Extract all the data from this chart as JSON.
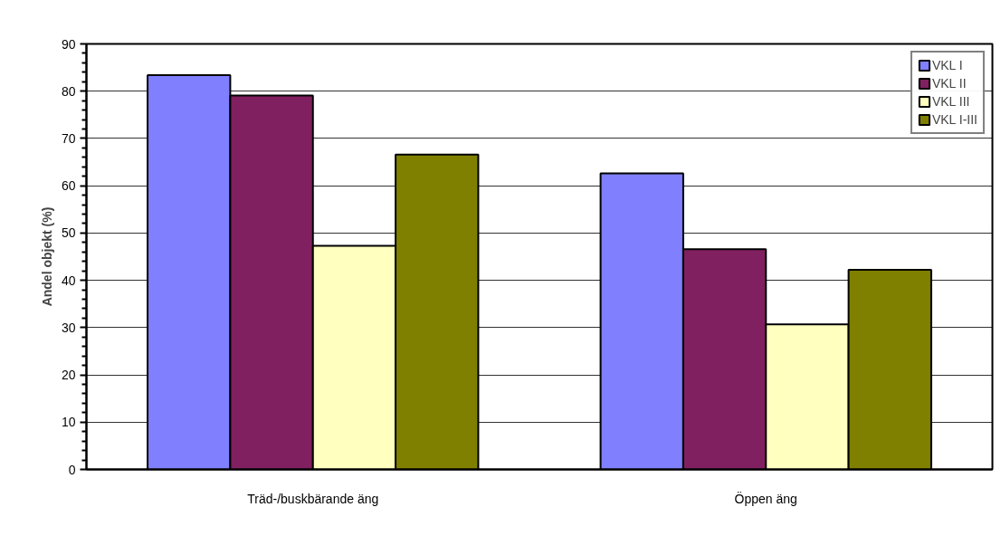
{
  "chart_data": {
    "type": "bar",
    "ylabel": "Andel objekt (%)",
    "categories": [
      "Träd-/buskbärande äng",
      "Öppen äng"
    ],
    "series": [
      {
        "name": "VKL I",
        "color": "#8080ff",
        "values": [
          83.4,
          62.6
        ]
      },
      {
        "name": "VKL II",
        "color": "#802060",
        "values": [
          79.1,
          46.6
        ]
      },
      {
        "name": "VKL III",
        "color": "#ffffc0",
        "values": [
          47.3,
          30.7
        ]
      },
      {
        "name": "VKL I-III",
        "color": "#808000",
        "values": [
          66.6,
          42.2
        ]
      }
    ],
    "ylim": [
      0,
      90
    ],
    "yticks": [
      0,
      10,
      20,
      30,
      40,
      50,
      60,
      70,
      80,
      90
    ],
    "grid": "y",
    "legend": "top right"
  }
}
